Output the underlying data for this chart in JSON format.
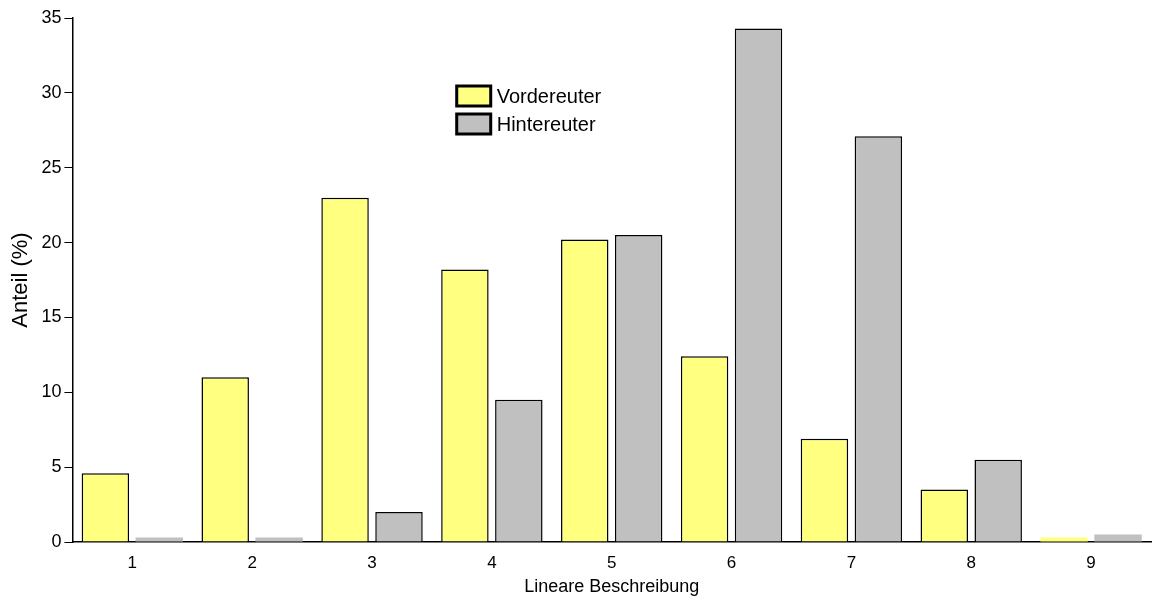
{
  "chart_data": {
    "type": "bar",
    "xlabel": "Lineare Beschreibung",
    "ylabel": "Anteil (%)",
    "categories": [
      "1",
      "2",
      "3",
      "4",
      "5",
      "6",
      "7",
      "8",
      "9"
    ],
    "series": [
      {
        "name": "Vordereuter",
        "color": "#ffff80",
        "values": [
          4.6,
          11.0,
          23.0,
          18.2,
          20.2,
          12.4,
          6.9,
          3.5,
          0.3
        ]
      },
      {
        "name": "Hintereuter",
        "color": "#c0c0c0",
        "values": [
          0.3,
          0.3,
          2.0,
          9.5,
          20.5,
          34.3,
          27.1,
          5.5,
          0.5
        ]
      }
    ],
    "ylim": [
      0,
      35
    ],
    "yticks": [
      0,
      5,
      10,
      15,
      20,
      25,
      30,
      35
    ],
    "grid": false,
    "legend": "top"
  }
}
